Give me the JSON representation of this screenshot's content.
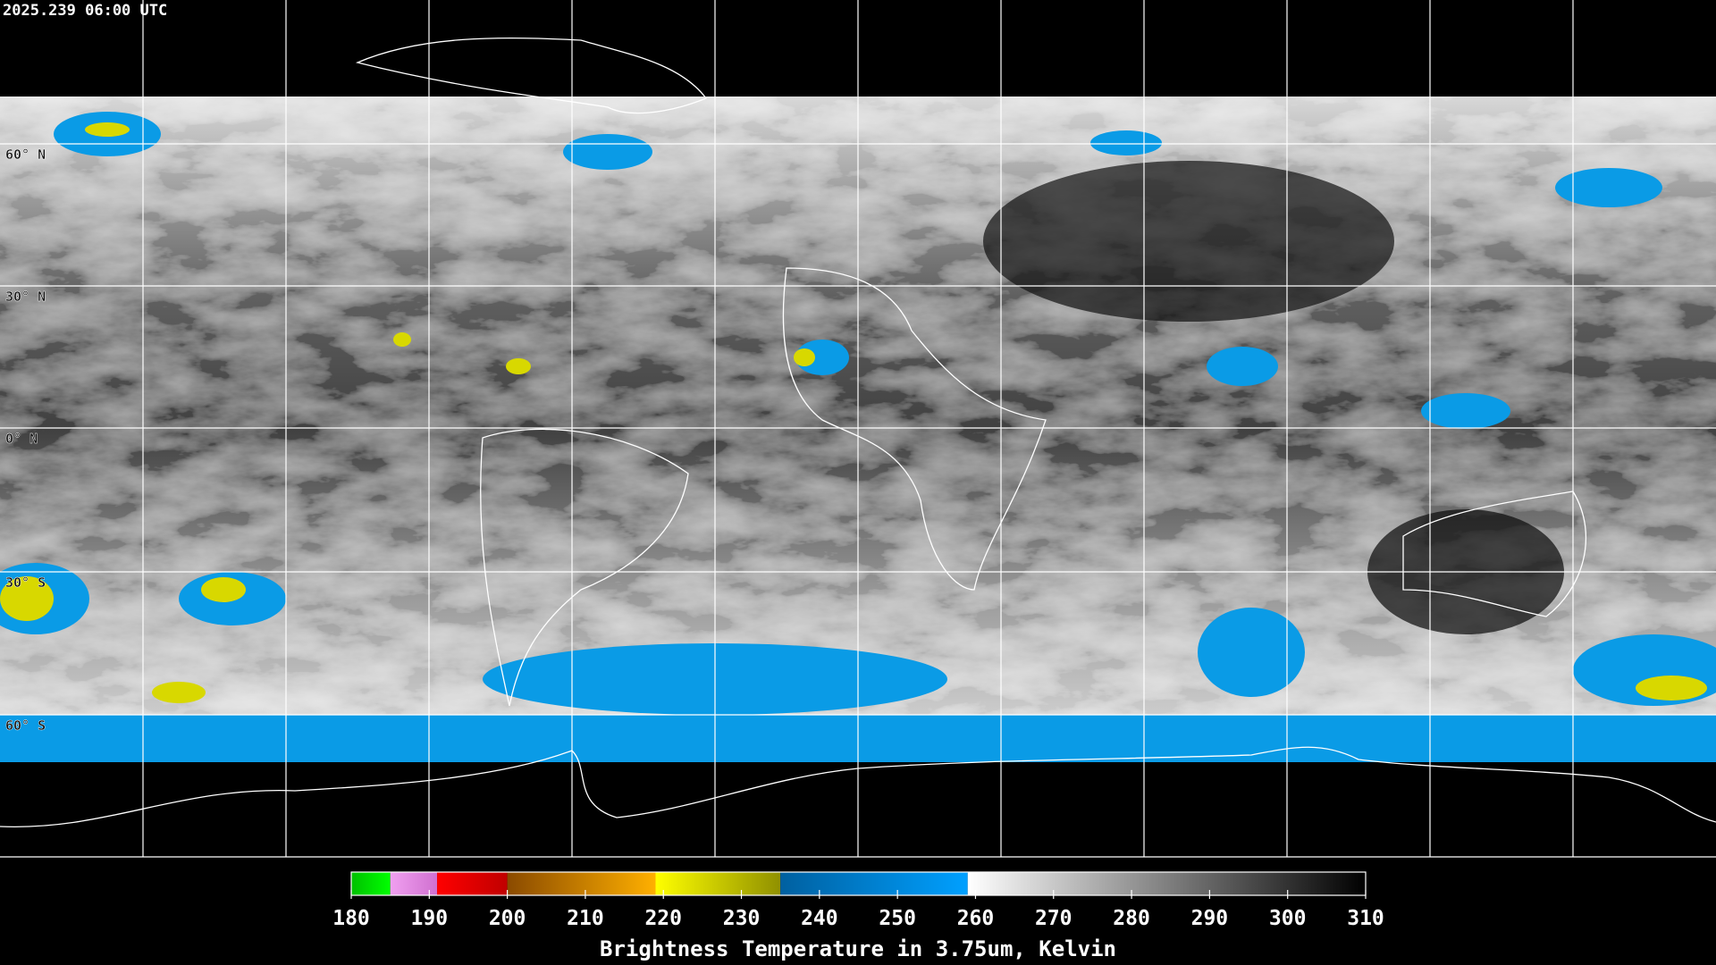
{
  "header": {
    "timestamp": "2025.239 06:00 UTC"
  },
  "map": {
    "latitude_labels": [
      "60° N",
      "30° N",
      "0° N",
      "30° S",
      "60° S"
    ]
  },
  "colorbar": {
    "title": "Brightness Temperature in 3.75um, Kelvin",
    "lim": [
      180,
      310
    ],
    "ticks": [
      180,
      190,
      200,
      210,
      220,
      230,
      240,
      250,
      260,
      270,
      280,
      290,
      300,
      310
    ],
    "segments": [
      {
        "from": 180,
        "to": 185,
        "colors": [
          "#00c000",
          "#00ff00"
        ]
      },
      {
        "from": 185,
        "to": 191,
        "colors": [
          "#f0a0f0",
          "#d070d0"
        ]
      },
      {
        "from": 191,
        "to": 200,
        "colors": [
          "#ff0000",
          "#c00000"
        ]
      },
      {
        "from": 200,
        "to": 219,
        "colors": [
          "#8a4a00",
          "#ffb000"
        ]
      },
      {
        "from": 219,
        "to": 235,
        "colors": [
          "#ffff00",
          "#909000"
        ]
      },
      {
        "from": 235,
        "to": 259,
        "colors": [
          "#0060a0",
          "#00a0ff"
        ]
      },
      {
        "from": 259,
        "to": 310,
        "colors": [
          "#ffffff",
          "#000000"
        ]
      }
    ]
  }
}
